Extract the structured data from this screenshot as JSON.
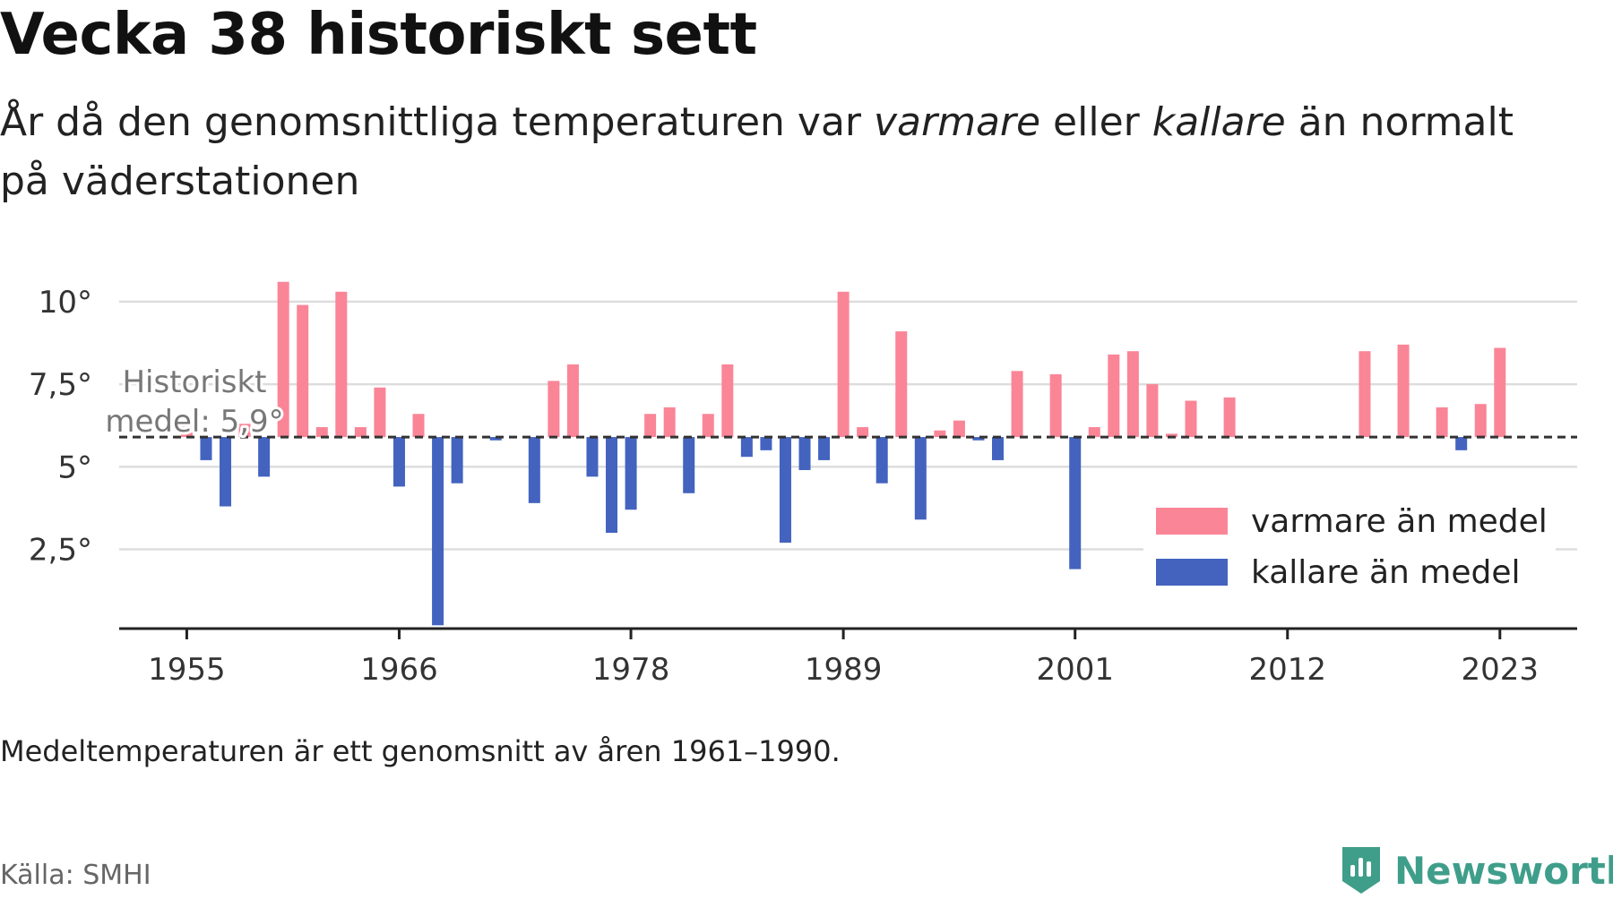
{
  "title": "Vecka 38 historiskt sett",
  "subtitle": {
    "p1": "År då den genomsnittliga temperaturen var ",
    "varmare": "varmare",
    "p2": " eller ",
    "kallare": "kallare",
    "p3": " än normalt på väderstationen"
  },
  "footnote": "Medeltemperaturen är ett genomsnitt av åren 1961–1990.",
  "source": "Källa: SMHI",
  "brand": {
    "name": "Newsworthy",
    "icon": "newsworthy-logo-icon",
    "color": "#3f9e8a"
  },
  "chart_data": {
    "type": "bar",
    "title": "",
    "xlabel": "",
    "ylabel": "",
    "baseline": 5.9,
    "baseline_label": [
      "Historiskt",
      "medel: 5,9°"
    ],
    "ylim": [
      0.1,
      11
    ],
    "yticks": [
      2.5,
      5,
      7.5,
      10
    ],
    "ytick_labels": [
      "2,5°",
      "5°",
      "7,5°",
      "10°"
    ],
    "xlim": [
      1951.5,
      2027
    ],
    "xticks": [
      1955,
      1966,
      1978,
      1989,
      2001,
      2012,
      2023
    ],
    "xtick_labels": [
      "1955",
      "1966",
      "1978",
      "1989",
      "2001",
      "2012",
      "2023"
    ],
    "grid": true,
    "colors": {
      "warm": "#fa8597",
      "cold": "#4363bf",
      "baseline": "#333333",
      "grid": "#dddddd",
      "axis": "#222222"
    },
    "legend": {
      "position": "right",
      "items": [
        {
          "label": "varmare än medel",
          "color": "#fa8597"
        },
        {
          "label": "kallare än medel",
          "color": "#4363bf"
        }
      ]
    },
    "series": [
      {
        "years": [
          1955,
          1956,
          1957,
          1958,
          1959,
          1960,
          1961,
          1962,
          1963,
          1964,
          1965,
          1966,
          1967,
          1968,
          1969,
          1970,
          1971,
          1972,
          1973,
          1974,
          1975,
          1976,
          1977,
          1978,
          1979,
          1980,
          1981,
          1982,
          1983,
          1984,
          1985,
          1986,
          1987,
          1988,
          1989,
          1990,
          1991,
          1992,
          1993,
          1994,
          1995,
          1996,
          1997,
          1998,
          1999,
          2000,
          2001,
          2002,
          2003,
          2004,
          2005,
          2006,
          2007,
          2008,
          2009,
          2010,
          2011,
          2012,
          2013,
          2014,
          2015,
          2016,
          2017,
          2018,
          2019,
          2020,
          2021,
          2022,
          2023
        ],
        "values": [
          6.3,
          5.2,
          3.8,
          6.3,
          4.7,
          10.6,
          9.9,
          6.2,
          10.3,
          6.2,
          7.4,
          4.4,
          6.6,
          0.2,
          4.5,
          null,
          5.8,
          null,
          3.9,
          7.6,
          8.1,
          4.7,
          3.0,
          3.7,
          6.6,
          6.8,
          4.2,
          6.6,
          8.1,
          5.3,
          5.5,
          2.7,
          4.9,
          5.2,
          10.3,
          6.2,
          4.5,
          9.1,
          3.4,
          6.1,
          6.4,
          5.8,
          5.2,
          7.9,
          null,
          7.8,
          1.9,
          6.2,
          8.4,
          8.5,
          7.5,
          6.0,
          7.0,
          null,
          7.1,
          null,
          null,
          null,
          null,
          null,
          null,
          8.5,
          null,
          8.7,
          null,
          6.8,
          5.5,
          6.9,
          8.6
        ]
      }
    ]
  }
}
